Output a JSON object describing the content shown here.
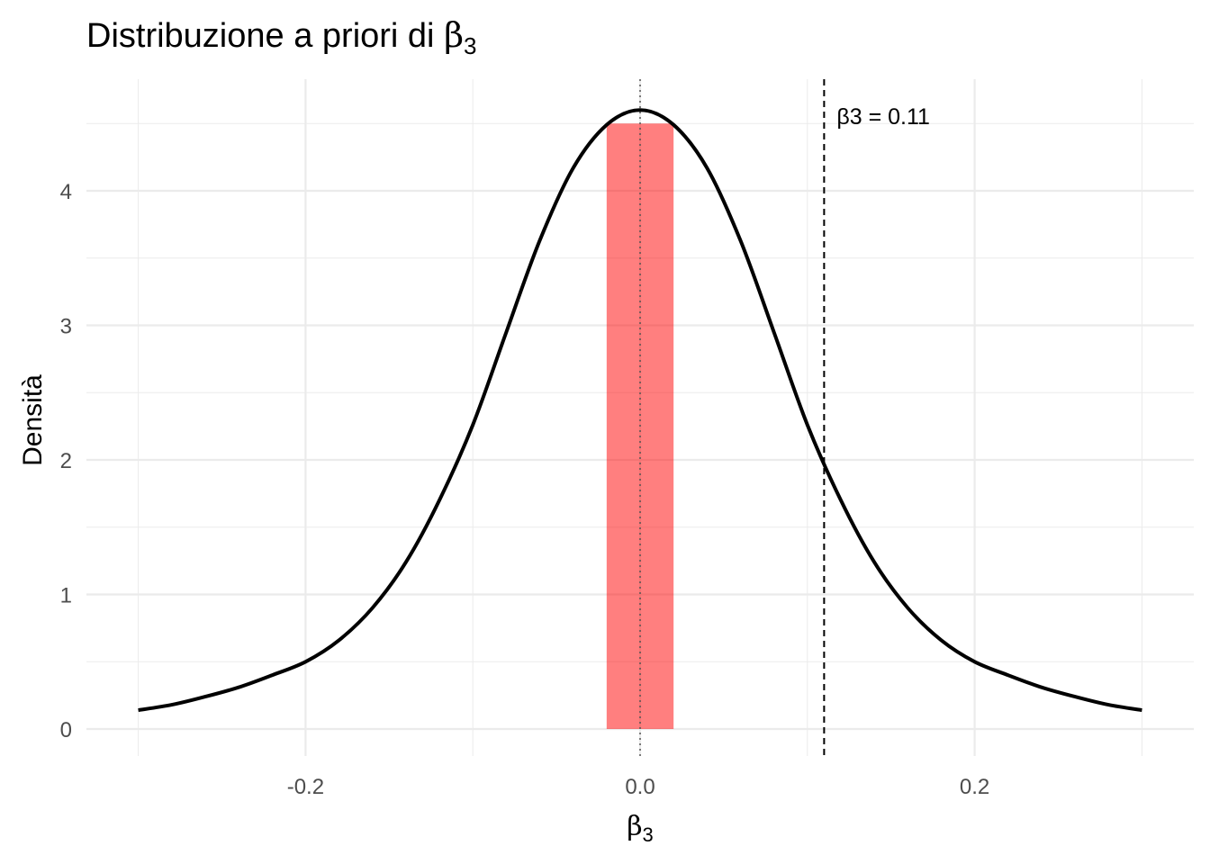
{
  "chart_data": {
    "type": "line",
    "title": "Distribuzione a priori di β3",
    "title_main": "Distribuzione a priori di ",
    "title_symbol": "β",
    "title_sub": "3",
    "xlabel_symbol": "β",
    "xlabel_sub": "3",
    "ylabel": "Densità",
    "xlim": [
      -0.3,
      0.3
    ],
    "ylim": [
      0,
      4.6
    ],
    "x_ticks": [
      -0.2,
      0.0,
      0.2
    ],
    "x_tick_labels": [
      "-0.2",
      "0.0",
      "0.2"
    ],
    "y_ticks": [
      0,
      1,
      2,
      3,
      4
    ],
    "y_tick_labels": [
      "0",
      "1",
      "2",
      "3",
      "4"
    ],
    "grid": true,
    "series": [
      {
        "x": [
          -0.3,
          -0.28,
          -0.26,
          -0.24,
          -0.22,
          -0.2,
          -0.18,
          -0.16,
          -0.14,
          -0.12,
          -0.1,
          -0.08,
          -0.06,
          -0.04,
          -0.02,
          0.0,
          0.02,
          0.04,
          0.06,
          0.08,
          0.1,
          0.12,
          0.14,
          0.16,
          0.18,
          0.2,
          0.22,
          0.24,
          0.26,
          0.28,
          0.3
        ],
        "y": [
          0.14,
          0.18,
          0.24,
          0.31,
          0.4,
          0.5,
          0.66,
          0.9,
          1.24,
          1.7,
          2.26,
          2.95,
          3.63,
          4.17,
          4.49,
          4.6,
          4.49,
          4.17,
          3.63,
          2.95,
          2.26,
          1.7,
          1.24,
          0.9,
          0.66,
          0.5,
          0.4,
          0.31,
          0.24,
          0.18,
          0.14
        ],
        "color": "#000000"
      }
    ],
    "highlight_band": {
      "x_range": [
        -0.02,
        0.02
      ],
      "y_range": [
        0,
        4.5
      ],
      "color": "#ff0000",
      "opacity": 0.5
    },
    "reference_lines": [
      {
        "x": 0.0,
        "style": "dotted",
        "color": "#555555"
      },
      {
        "x": 0.11,
        "style": "dashed",
        "color": "#000000",
        "label": "β3 = 0.11",
        "label_y": 4.55
      }
    ]
  }
}
